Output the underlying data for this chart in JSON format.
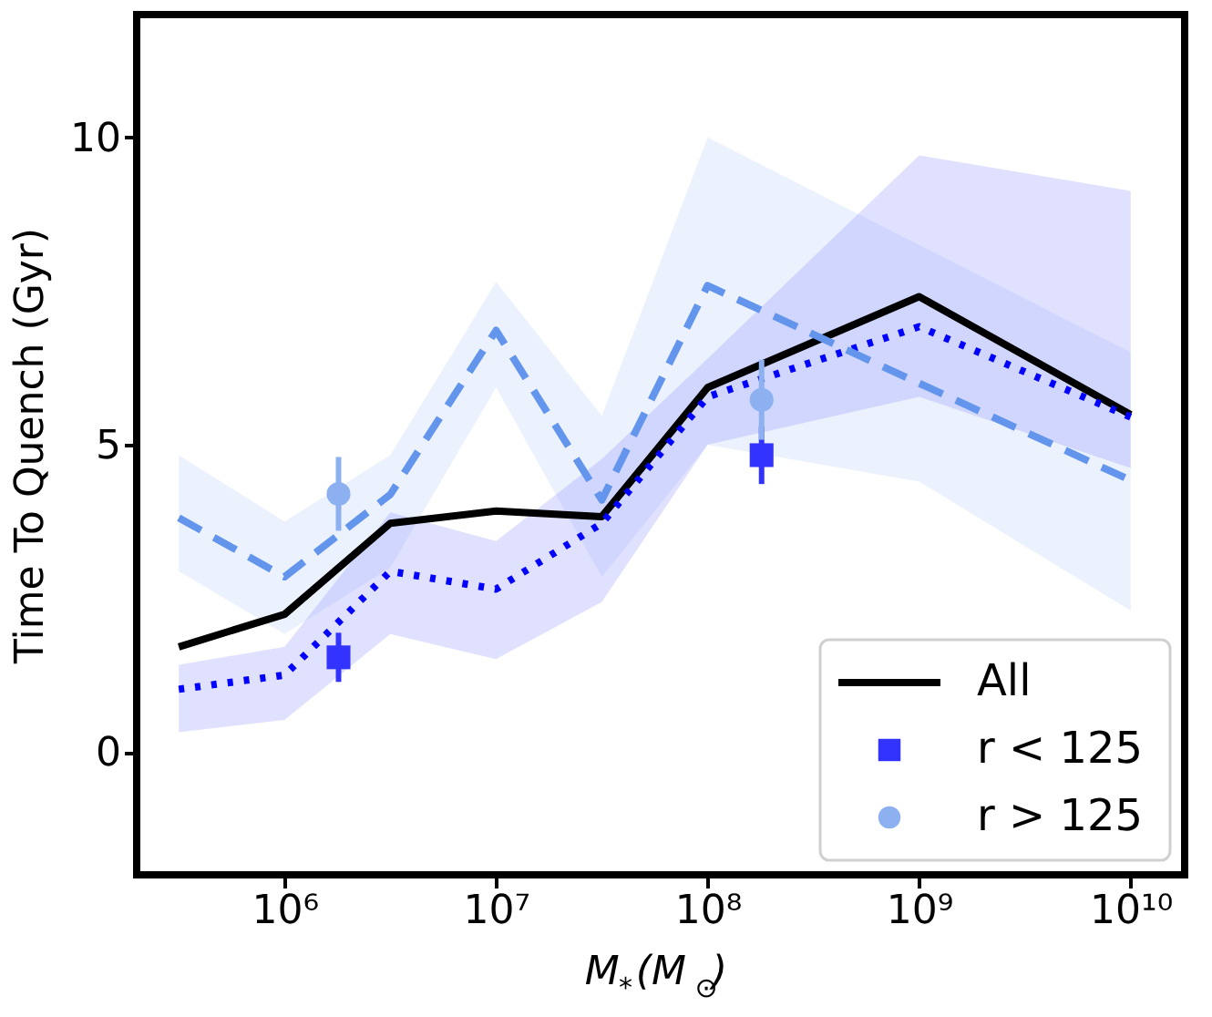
{
  "chart_data": {
    "type": "line",
    "xlabel": "M$_{*}$(M$_{⊙}$)",
    "ylabel": "Time To Quench (Gyr)",
    "log": "x",
    "grid": false,
    "legend": "bottom right",
    "xlim": [
      200000,
      18000000000
    ],
    "xticks": [
      {
        "value": 1000000,
        "label": "10⁶"
      },
      {
        "value": 10000000,
        "label": "10⁷"
      },
      {
        "value": 100000000,
        "label": "10⁸"
      },
      {
        "value": 1000000000,
        "label": "10⁹"
      },
      {
        "value": 10000000000,
        "label": "10¹⁰"
      }
    ],
    "ylim": [
      -2,
      12
    ],
    "yticks": [
      0,
      5,
      10
    ],
    "series": [
      {
        "name": "All",
        "color": "#000000",
        "line_style": "solid",
        "marker": "none",
        "x": [
          316228,
          1000000,
          3162278,
          10000000,
          31622777,
          100000000,
          1000000000,
          10000000000
        ],
        "values": [
          1.71,
          2.24,
          3.72,
          3.92,
          3.83,
          5.93,
          7.41,
          5.49
        ]
      },
      {
        "color": "#0000ff",
        "line_style": "dotted",
        "marker": "none",
        "x": [
          316228,
          1000000,
          3162278,
          10000000,
          31622777,
          100000000,
          1000000000,
          10000000000
        ],
        "values": [
          1.02,
          1.25,
          2.94,
          2.65,
          3.72,
          5.78,
          6.92,
          5.45
        ],
        "lower": [
          0.32,
          0.52,
          1.92,
          1.51,
          2.44,
          5.0,
          5.78,
          4.62
        ],
        "upper": [
          1.42,
          1.71,
          3.9,
          3.43,
          4.77,
          6.4,
          9.71,
          9.13
        ]
      },
      {
        "color": "#6495ed",
        "line_style": "dashed",
        "marker": "none",
        "x": [
          316228,
          1000000,
          3162278,
          10000000,
          31622777,
          100000000,
          1000000000,
          10000000000
        ],
        "values": [
          3.81,
          2.85,
          4.19,
          6.86,
          4.1,
          7.59,
          6.0,
          4.42
        ],
        "lower": [
          2.94,
          1.92,
          3.0,
          5.93,
          2.85,
          5.0,
          4.4,
          2.3
        ],
        "upper": [
          4.83,
          3.75,
          4.83,
          7.65,
          5.47,
          10.0,
          8.25,
          6.5
        ]
      },
      {
        "name": "r < 125",
        "type": "scatter",
        "color": "#3333ff",
        "marker": "square",
        "x": [
          1800000,
          180000000
        ],
        "values": [
          1.54,
          4.83
        ],
        "errors": [
          0.4,
          0.47
        ]
      },
      {
        "name": "r > 125",
        "type": "scatter",
        "color": "#8cb0f0",
        "marker": "circle",
        "x": [
          1800000,
          180000000
        ],
        "values": [
          4.2,
          5.73
        ],
        "errors": [
          0.6,
          0.65
        ]
      }
    ]
  }
}
